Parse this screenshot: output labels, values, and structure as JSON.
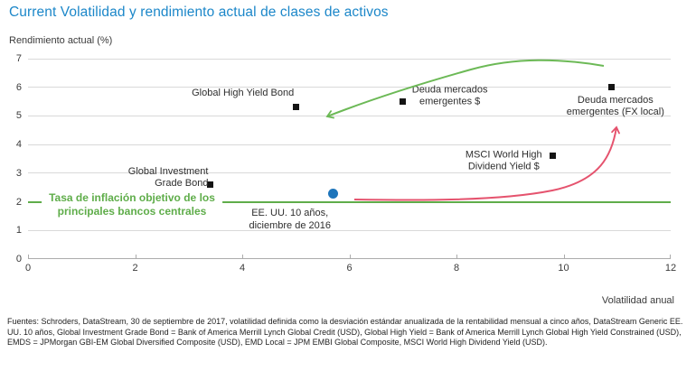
{
  "colors": {
    "title": "#1c87c9",
    "grid": "#d9d9d9",
    "axis": "#ababab",
    "tick_text": "#3a3a3a",
    "marker_black": "#141414"
  },
  "chart_data": {
    "type": "scatter",
    "title": "Current Volatilidad y rendimiento actual de clases de activos",
    "ylabel": "Rendimiento actual (%)",
    "xlabel": "Volatilidad anual",
    "xlim": [
      0,
      12
    ],
    "ylim": [
      0,
      7
    ],
    "xticks": [
      0,
      2,
      4,
      6,
      8,
      10,
      12
    ],
    "yticks": [
      0,
      1,
      2,
      3,
      4,
      5,
      6,
      7
    ],
    "grid": true,
    "legend_position": "none",
    "points": [
      {
        "name": "global-high-yield-bond",
        "label_lines": [
          "Global High Yield Bond"
        ],
        "x": 5.0,
        "y": 5.3,
        "marker": "square",
        "color": "#141414",
        "placement": "above-left",
        "offset": [
          0,
          0
        ]
      },
      {
        "name": "deuda-mercados-emergentes-usd",
        "label_lines": [
          "Deuda mercados",
          "emergentes $"
        ],
        "x": 7.0,
        "y": 5.5,
        "marker": "square",
        "color": "#141414",
        "placement": "right",
        "offset": [
          0,
          -6
        ]
      },
      {
        "name": "deuda-mercados-emergentes-fx-local",
        "label_lines": [
          "Deuda mercados",
          "emergentes (FX local)"
        ],
        "x": 10.9,
        "y": 6.0,
        "marker": "square",
        "color": "#141414",
        "placement": "below",
        "offset": [
          4,
          0
        ]
      },
      {
        "name": "msci-world-high-dividend-yield-usd",
        "label_lines": [
          "MSCI World High",
          "Dividend Yield $"
        ],
        "x": 9.8,
        "y": 3.6,
        "marker": "square",
        "color": "#141414",
        "placement": "left",
        "offset": [
          0,
          6
        ]
      },
      {
        "name": "global-investment-grade-bond",
        "label_lines": [
          "Global Investment",
          "Grade Bond"
        ],
        "x": 3.4,
        "y": 2.6,
        "marker": "square",
        "color": "#141414",
        "placement": "above-left",
        "offset": [
          0,
          14
        ]
      },
      {
        "name": "us-10y-dec-2016",
        "label_lines": [
          "EE. UU. 10 años,",
          "diciembre de 2016"
        ],
        "x": 5.7,
        "y": 2.3,
        "marker": "circle",
        "color": "#1e75bb",
        "placement": "below",
        "offset": [
          -48,
          8
        ]
      }
    ],
    "reference_line": {
      "y": 2,
      "color": "#5fad4a",
      "label_lines": [
        "Tasa de inflación objetivo de los",
        "principales bancos centrales"
      ]
    },
    "annotations": [
      {
        "name": "green-arrow",
        "color": "#6cb956"
      },
      {
        "name": "red-arrow",
        "color": "#e5536e"
      }
    ]
  },
  "footer": {
    "source_text": "Fuentes: Schroders, DataStream, 30 de septiembre de 2017, volatilidad definida como la desviación estándar anualizada de la rentabilidad mensual a cinco años, DataStream Generic EE. UU. 10 años, Global Investment Grade Bond = Bank of America Merrill Lynch Global Credit (USD), Global High Yield = Bank of America Merrill Lynch Global High Yield Constrained (USD), EMDS = JPMorgan GBI-EM Global Diversified Composite (USD), EMD Local = JPM EMBI Global Composite, MSCI World High Dividend Yield (USD)."
  }
}
